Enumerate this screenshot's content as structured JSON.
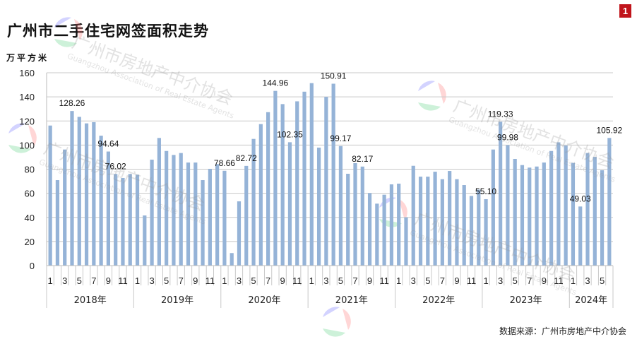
{
  "header": {
    "title": "广州市二手住宅网签面积走势",
    "unit": "万平方米",
    "badge": "1"
  },
  "footer": {
    "source": "数据来源：广州市房地产中介协会"
  },
  "watermark": {
    "cn": "广州市房地产中介协会",
    "en": "Guangzhou Association of Real Estate Agents"
  },
  "colors": {
    "bar": "#95b3d7",
    "grid": "#c8c8c8",
    "badge": "#c0141b"
  },
  "chart_data": {
    "type": "bar",
    "title": "广州市二手住宅网签面积走势",
    "ylabel": "万平方米",
    "ylim": [
      0,
      160
    ],
    "yticks": [
      "0",
      "20",
      "40",
      "60",
      "80",
      "100",
      "120",
      "140",
      "160"
    ],
    "grid": true,
    "legend": "none",
    "years": [
      {
        "label": "2018年",
        "months": 12
      },
      {
        "label": "2019年",
        "months": 12
      },
      {
        "label": "2020年",
        "months": 12
      },
      {
        "label": "2021年",
        "months": 12
      },
      {
        "label": "2022年",
        "months": 12
      },
      {
        "label": "2023年",
        "months": 12
      },
      {
        "label": "2024年",
        "months": 6
      }
    ],
    "month_tick_labels": [
      "1",
      "3",
      "5",
      "7",
      "9",
      "11"
    ],
    "values": [
      116.2,
      70.9,
      96.3,
      128.26,
      123.4,
      118.0,
      119.0,
      107.8,
      94.64,
      76.02,
      72.7,
      76.0,
      75.4,
      41.6,
      87.9,
      105.9,
      95.1,
      91.8,
      93.4,
      85.5,
      85.5,
      70.9,
      80.3,
      84.2,
      78.66,
      10.4,
      53.3,
      82.72,
      105.1,
      117.4,
      127.3,
      144.96,
      134.0,
      102.35,
      136.3,
      144.3,
      151.4,
      97.9,
      140.0,
      150.91,
      99.17,
      76.2,
      85.0,
      82.17,
      60.2,
      51.4,
      58.8,
      67.4,
      68.0,
      40.0,
      82.8,
      73.8,
      73.8,
      77.9,
      71.7,
      78.5,
      71.7,
      66.8,
      57.8,
      63.0,
      55.1,
      96.3,
      119.33,
      99.98,
      88.5,
      83.4,
      81.3,
      82.2,
      85.5,
      95.1,
      102.3,
      99.6,
      85.2,
      49.03,
      93.4,
      90.2,
      79.1,
      105.92
    ],
    "data_labels": [
      {
        "index": 3,
        "label": "128.26"
      },
      {
        "index": 8,
        "label": "94.64"
      },
      {
        "index": 9,
        "label": "76.02"
      },
      {
        "index": 24,
        "label": "78.66"
      },
      {
        "index": 27,
        "label": "82.72"
      },
      {
        "index": 31,
        "label": "144.96"
      },
      {
        "index": 33,
        "label": "102.35"
      },
      {
        "index": 39,
        "label": "150.91"
      },
      {
        "index": 40,
        "label": "99.17"
      },
      {
        "index": 43,
        "label": "82.17"
      },
      {
        "index": 60,
        "label": "55.10"
      },
      {
        "index": 62,
        "label": "119.33"
      },
      {
        "index": 63,
        "label": "99.98"
      },
      {
        "index": 73,
        "label": "49.03"
      },
      {
        "index": 77,
        "label": "105.92"
      }
    ]
  }
}
